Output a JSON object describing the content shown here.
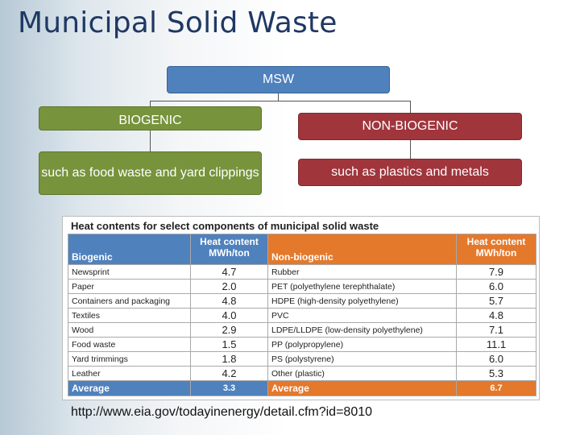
{
  "title": "Municipal Solid Waste",
  "diagram": {
    "root": "MSW",
    "biogenic": "BIOGENIC",
    "non_biogenic": "NON-BIOGENIC",
    "biogenic_example": "such as food waste and yard clippings",
    "non_biogenic_example": "such as plastics and metals"
  },
  "table": {
    "title": "Heat contents for select components of municipal solid waste",
    "headers": {
      "biogenic": "Biogenic",
      "heat_content_1": "Heat content",
      "unit_1": "MWh/ton",
      "non_biogenic": "Non-biogenic",
      "heat_content_2": "Heat content",
      "unit_2": "MWh/ton"
    },
    "rows": [
      {
        "bio": "Newsprint",
        "bio_val": "4.7",
        "non": "Rubber",
        "non_val": "7.9"
      },
      {
        "bio": "Paper",
        "bio_val": "2.0",
        "non": "PET (polyethylene terephthalate)",
        "non_val": "6.0"
      },
      {
        "bio": "Containers and packaging",
        "bio_val": "4.8",
        "non": "HDPE (high-density polyethylene)",
        "non_val": "5.7"
      },
      {
        "bio": "Textiles",
        "bio_val": "4.0",
        "non": "PVC",
        "non_val": "4.8"
      },
      {
        "bio": "Wood",
        "bio_val": "2.9",
        "non": "LDPE/LLDPE (low-density polyethylene)",
        "non_val": "7.1"
      },
      {
        "bio": "Food waste",
        "bio_val": "1.5",
        "non": "PP (polypropylene)",
        "non_val": "11.1"
      },
      {
        "bio": "Yard trimmings",
        "bio_val": "1.8",
        "non": "PS (polystyrene)",
        "non_val": "6.0"
      },
      {
        "bio": "Leather",
        "bio_val": "4.2",
        "non": "Other (plastic)",
        "non_val": "5.3"
      }
    ],
    "average": {
      "bio_label": "Average",
      "bio_val": "3.3",
      "non_label": "Average",
      "non_val": "6.7"
    }
  },
  "source_url": "http://www.eia.gov/todayinenergy/detail.cfm?id=8010",
  "colors": {
    "title": "#1f3864",
    "msw": "#4f81bd",
    "biogenic": "#77933c",
    "non_biogenic": "#a0353c",
    "table_blue": "#4f81bd",
    "table_orange": "#e4782b"
  }
}
